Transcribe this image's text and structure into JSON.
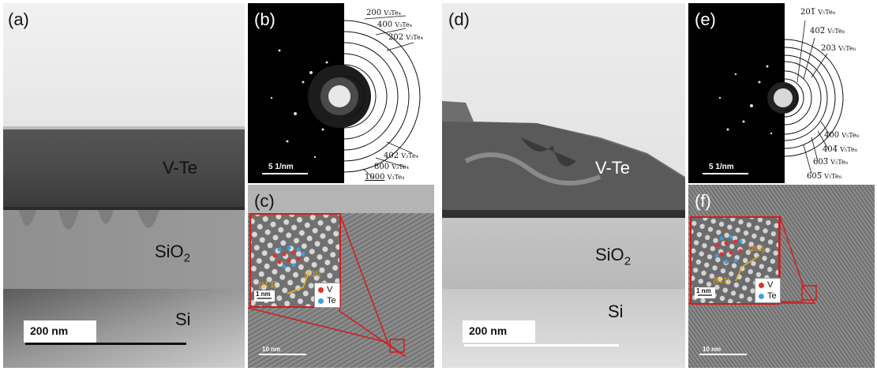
{
  "figure": {
    "panels": {
      "a": {
        "label": "(a)",
        "layers": {
          "vte": "V-Te",
          "sio2_main": "SiO",
          "sio2_sub": "2",
          "si": "Si"
        },
        "scale_bar": "200 nm"
      },
      "b": {
        "label": "(b)",
        "scale_bar": "5 1/nm",
        "rings": [
          {
            "index": "200",
            "phase": "V₃Te₄"
          },
          {
            "index": "400",
            "phase": "V₃Te₄"
          },
          {
            "index": "202",
            "phase": "V₃Te₄"
          },
          {
            "index": "402",
            "phase": "V₃Te₄"
          },
          {
            "index": "800",
            "phase": "V₃Te₄"
          },
          {
            "index": "1000",
            "phase": "V₃Te₄"
          }
        ]
      },
      "c": {
        "label": "(c)",
        "scale_bar": "10 nm",
        "inset_scale": "1 nm",
        "dir1": "[11̅ 1̅]",
        "dir2": "[201]",
        "legend": {
          "v": "V",
          "te": "Te"
        }
      },
      "d": {
        "label": "(d)",
        "layers": {
          "vte": "V-Te",
          "sio2_main": "SiO",
          "sio2_sub": "2",
          "si": "Si"
        },
        "scale_bar": "200 nm"
      },
      "e": {
        "label": "(e)",
        "scale_bar": "5 1/nm",
        "rings": [
          {
            "index": "201̅",
            "phase": "V₅Te₈"
          },
          {
            "index": "402̅",
            "phase": "V₅Te₈"
          },
          {
            "index": "203",
            "phase": "V₅Te₈"
          },
          {
            "index": "400",
            "phase": "V₅Te₈"
          },
          {
            "index": "404̅",
            "phase": "V₅Te₈"
          },
          {
            "index": "603̅",
            "phase": "V₅Te₈"
          },
          {
            "index": "605̅",
            "phase": "V₅Te₈"
          }
        ]
      },
      "f": {
        "label": "(f)",
        "scale_bar": "10 nm",
        "inset_scale": "1 nm",
        "dir1": "[201]",
        "dir2": "[021]",
        "legend": {
          "v": "V",
          "te": "Te"
        }
      }
    },
    "colors": {
      "inset_border": "#d21d1d",
      "v_atom": "#e0322a",
      "te_atom": "#3aa0e0",
      "direction_arrow": "#f0b020"
    }
  }
}
